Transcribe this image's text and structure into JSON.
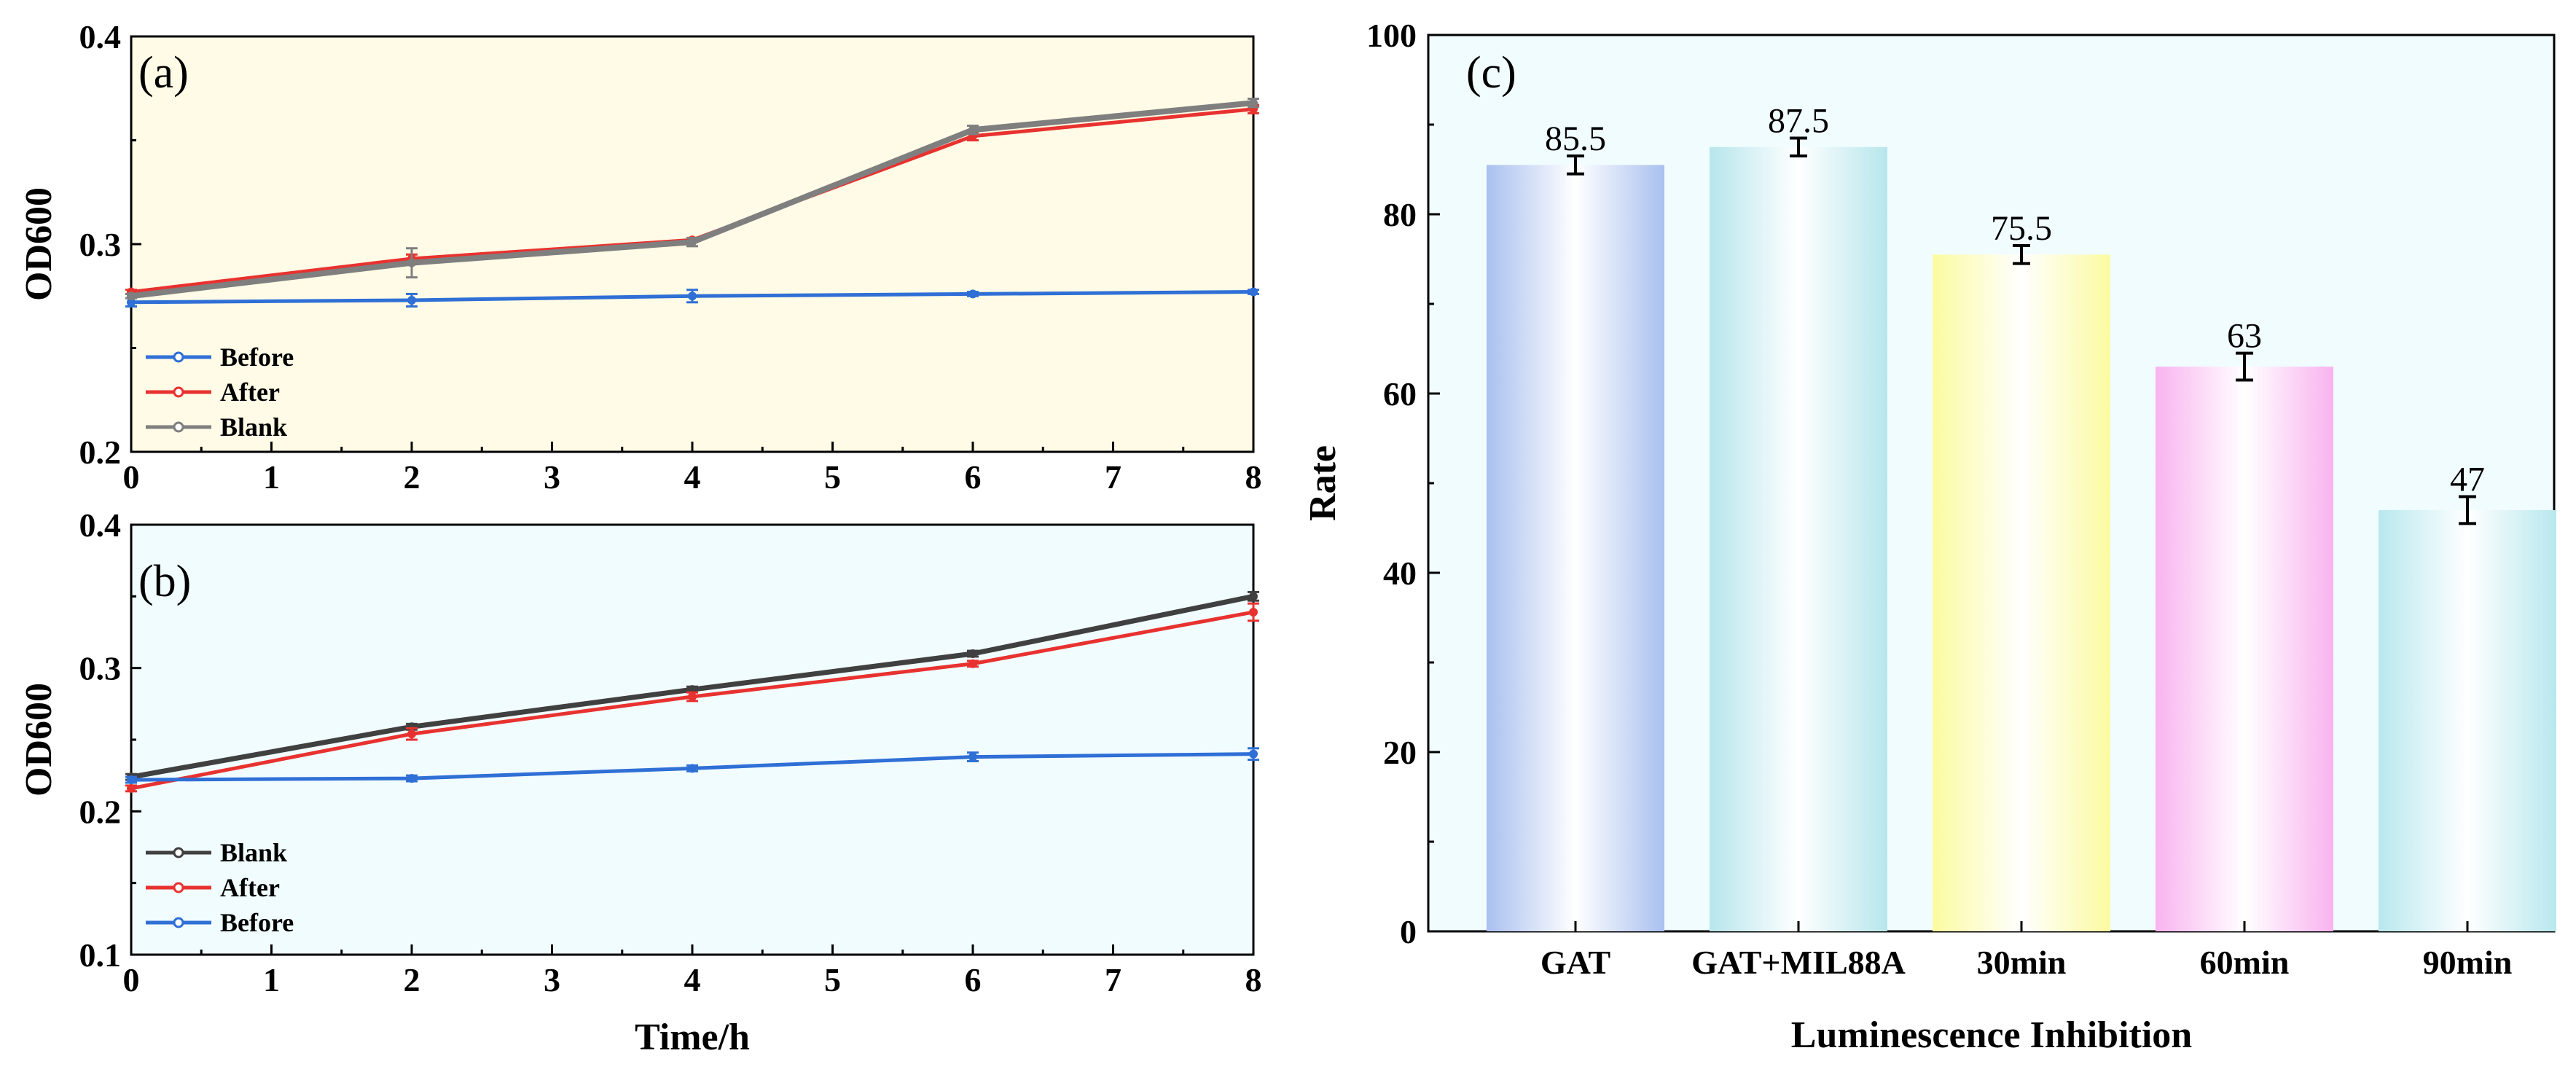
{
  "colors": {
    "before": "#2f6fd6",
    "after": "#e8322f",
    "blank_a": "#7f7f7f",
    "blank_b": "#404040",
    "bg_a": "#fffbe6",
    "bg_b": "#f1fcff",
    "bg_c": "#f1fcff"
  },
  "chart_data": [
    {
      "type": "line",
      "panel_label": "(a)",
      "xlabel": "",
      "ylabel": "OD600",
      "xlim": [
        0,
        8
      ],
      "ylim": [
        0.2,
        0.4
      ],
      "x_ticks": [
        "0",
        "1",
        "2",
        "3",
        "4",
        "5",
        "6",
        "7",
        "8"
      ],
      "y_ticks": [
        "0.2",
        "0.3",
        "0.4"
      ],
      "x": [
        0,
        2,
        4,
        6,
        8
      ],
      "legend": [
        "Before",
        "After",
        "Blank"
      ],
      "legend_position": "bottom-left",
      "series": [
        {
          "name": "Before",
          "color_key": "before",
          "values": [
            0.272,
            0.273,
            0.275,
            0.276,
            0.277
          ],
          "errors": [
            0.002,
            0.003,
            0.003,
            0.001,
            0.001
          ]
        },
        {
          "name": "After",
          "color_key": "after",
          "values": [
            0.277,
            0.293,
            0.302,
            0.352,
            0.365
          ],
          "errors": [
            0.001,
            0.002,
            0.001,
            0.002,
            0.002
          ]
        },
        {
          "name": "Blank",
          "color_key": "blank_a",
          "values": [
            0.275,
            0.291,
            0.301,
            0.355,
            0.368
          ],
          "errors": [
            0.001,
            0.007,
            0.002,
            0.002,
            0.002
          ]
        }
      ]
    },
    {
      "type": "line",
      "panel_label": "(b)",
      "xlabel": "Time/h",
      "ylabel": "OD600",
      "xlim": [
        0,
        8
      ],
      "ylim": [
        0.1,
        0.4
      ],
      "x_ticks": [
        "0",
        "1",
        "2",
        "3",
        "4",
        "5",
        "6",
        "7",
        "8"
      ],
      "y_ticks": [
        "0.1",
        "0.2",
        "0.3",
        "0.4"
      ],
      "x": [
        0,
        2,
        4,
        6,
        8
      ],
      "legend": [
        "Blank",
        "After",
        "Before"
      ],
      "legend_position": "bottom-left",
      "series": [
        {
          "name": "Blank",
          "color_key": "blank_b",
          "values": [
            0.224,
            0.259,
            0.285,
            0.31,
            0.35
          ],
          "errors": [
            0.002,
            0.002,
            0.002,
            0.002,
            0.003
          ]
        },
        {
          "name": "After",
          "color_key": "after",
          "values": [
            0.216,
            0.254,
            0.28,
            0.303,
            0.339
          ],
          "errors": [
            0.002,
            0.004,
            0.003,
            0.002,
            0.006
          ]
        },
        {
          "name": "Before",
          "color_key": "before",
          "values": [
            0.222,
            0.223,
            0.23,
            0.238,
            0.24
          ],
          "errors": [
            0.002,
            0.002,
            0.002,
            0.003,
            0.004
          ]
        }
      ]
    },
    {
      "type": "bar",
      "panel_label": "(c)",
      "xlabel": "Luminescence Inhibition",
      "ylabel": "Rate",
      "ylim": [
        0,
        100
      ],
      "y_ticks": [
        "0",
        "20",
        "40",
        "60",
        "80",
        "100"
      ],
      "categories": [
        "GAT",
        "GAT+MIL88A",
        "30min",
        "60min",
        "90min"
      ],
      "values": [
        85.5,
        87.5,
        75.5,
        63,
        47
      ],
      "data_labels": [
        "85.5",
        "87.5",
        "75.5",
        "63",
        "47"
      ],
      "errors": [
        1.0,
        1.0,
        1.0,
        1.5,
        1.5
      ],
      "bar_colors": [
        "#a9c0ef",
        "#b7e6ec",
        "#fbfba0",
        "#f9b3ef",
        "#b8e8ee"
      ]
    }
  ]
}
